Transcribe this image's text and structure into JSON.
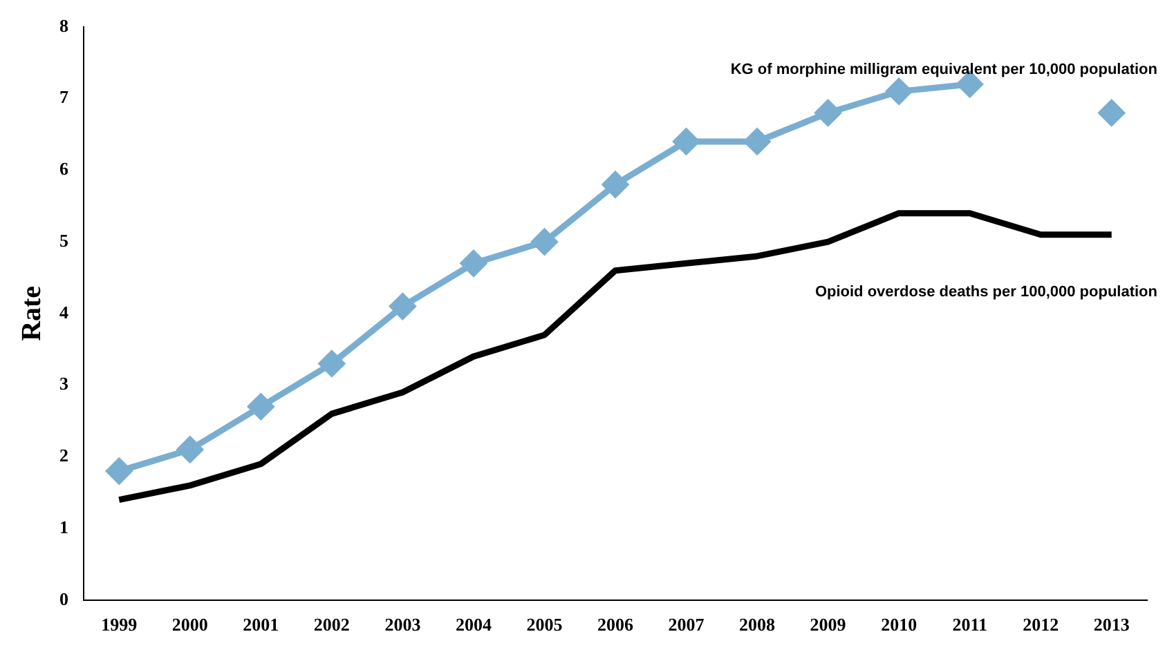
{
  "chart_data": {
    "type": "line",
    "ylabel": "Rate",
    "categories": [
      "1999",
      "2000",
      "2001",
      "2002",
      "2003",
      "2004",
      "2005",
      "2006",
      "2007",
      "2008",
      "2009",
      "2010",
      "2011",
      "2012",
      "2013"
    ],
    "series": [
      {
        "name": "KG of morphine milligram equivalent per 10,000 population",
        "color": "#7aaed0",
        "marker": "diamond",
        "values": [
          1.8,
          2.1,
          2.7,
          3.3,
          4.1,
          4.7,
          5.0,
          5.8,
          6.4,
          6.4,
          6.8,
          7.1,
          7.2,
          null,
          6.8
        ]
      },
      {
        "name": "Opioid overdose deaths per 100,000 population",
        "color": "#000000",
        "marker": "none",
        "values": [
          1.4,
          1.6,
          1.9,
          2.6,
          2.9,
          3.4,
          3.7,
          4.6,
          4.7,
          4.8,
          5.0,
          5.4,
          5.4,
          5.1,
          5.1
        ]
      }
    ],
    "ylim": [
      0,
      8
    ],
    "yticks": [
      0,
      1,
      2,
      3,
      4,
      5,
      6,
      7,
      8
    ],
    "grid": false,
    "legend": false,
    "line_style": "solid"
  }
}
